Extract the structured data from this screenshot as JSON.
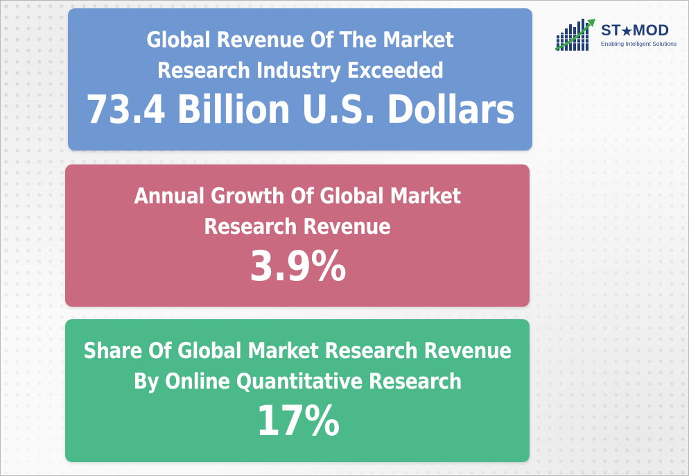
{
  "logo": {
    "brand_prefix": "ST",
    "brand_star": "★",
    "brand_suffix": "MOD",
    "tagline": "Enabling Intelligent Solutions"
  },
  "cards": [
    {
      "label_line1": "Global Revenue Of The Market",
      "label_line2": "Research Industry Exceeded",
      "value": "73.4 Billion U.S. Dollars",
      "color": "#6f97d2"
    },
    {
      "label_line1": "Annual Growth Of Global Market",
      "label_line2": "Research Revenue",
      "value": "3.9%",
      "color": "#c96a80"
    },
    {
      "label_line1": "Share Of Global Market Research Revenue",
      "label_line2": "By Online Quantitative Research",
      "value": "17%",
      "color": "#4bb98a"
    }
  ],
  "colors": {
    "logo_blue": "#1f3d7a",
    "logo_green": "#3aa64a"
  }
}
